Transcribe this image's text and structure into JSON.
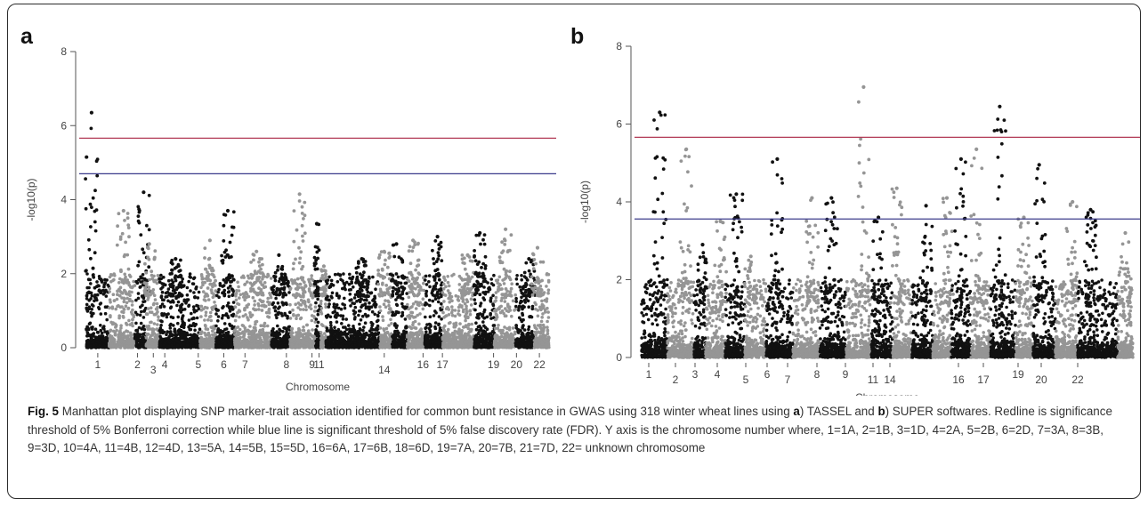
{
  "panels": {
    "a": {
      "letter": "a"
    },
    "b": {
      "letter": "b"
    }
  },
  "colors": {
    "odd_chromosome": "#111111",
    "even_chromosome": "#959595",
    "bonferroni_line": "#b23a55",
    "fdr_line": "#3b3b8c"
  },
  "chart_data": [
    {
      "type": "scatter",
      "panel": "a",
      "subtype": "manhattan",
      "xlabel": "Chromosome",
      "ylabel": "-log10(p)",
      "ylim": [
        0,
        8
      ],
      "yticks": [
        0,
        2,
        4,
        6,
        8
      ],
      "xtick_labels": [
        "1",
        "2",
        "3",
        "4",
        "5",
        "6",
        "7",
        "8",
        "9",
        "11",
        "14",
        "16",
        "17",
        "19",
        "20",
        "22"
      ],
      "chromosomes": [
        "1",
        "2",
        "3",
        "4",
        "5",
        "6",
        "7",
        "8",
        "9",
        "10",
        "11",
        "12",
        "13",
        "14",
        "15",
        "16",
        "17",
        "18",
        "19",
        "20",
        "21",
        "22"
      ],
      "thresholds": [
        {
          "type": "Bonferroni 5%",
          "value": 5.66
        },
        {
          "type": "FDR 5%",
          "value": 4.7
        }
      ],
      "chromosome_peaks": [
        6.35,
        3.7,
        4.2,
        2.8,
        2.4,
        2.9,
        3.7,
        2.6,
        2.5,
        4.15,
        3.35,
        2.2,
        2.4,
        2.6,
        2.8,
        2.9,
        3.0,
        2.5,
        3.1,
        3.2,
        2.4,
        2.7
      ]
    },
    {
      "type": "scatter",
      "panel": "b",
      "subtype": "manhattan",
      "xlabel": "Chromosome",
      "ylabel": "-log10(p)",
      "ylim": [
        0,
        8
      ],
      "yticks": [
        0,
        2,
        4,
        6,
        8
      ],
      "xtick_labels": [
        "1",
        "2",
        "3",
        "4",
        "5",
        "6",
        "7",
        "8",
        "9",
        "11",
        "14",
        "16",
        "17",
        "19",
        "20",
        "22"
      ],
      "chromosomes": [
        "1",
        "2",
        "3",
        "4",
        "5",
        "6",
        "7",
        "8",
        "9",
        "10",
        "11",
        "12",
        "13",
        "14",
        "15",
        "16",
        "17",
        "18",
        "19",
        "20",
        "21",
        "22"
      ],
      "thresholds": [
        {
          "type": "Bonferroni 5%",
          "value": 5.66
        },
        {
          "type": "FDR 5%",
          "value": 3.56
        }
      ],
      "chromosome_peaks": [
        6.3,
        5.35,
        2.9,
        3.5,
        4.2,
        2.6,
        5.1,
        4.1,
        4.1,
        6.95,
        3.6,
        4.35,
        3.9,
        4.1,
        5.1,
        5.35,
        6.45,
        3.6,
        4.95,
        4.0,
        3.8,
        3.2
      ]
    }
  ],
  "caption": {
    "fig_label": "Fig. 5",
    "text_1": " Manhattan plot displaying SNP marker-trait association identified for common bunt resistance in GWAS using 318 winter wheat lines using ",
    "a_label": "a",
    "text_2": ") TASSEL and ",
    "b_label": "b",
    "text_3": ") SUPER softwares. Redline is significance threshold of 5% Bonferroni correction while blue line is significant threshold of 5% false discovery rate (FDR). Y axis is the chromosome number where, 1=1A, 2=1B, 3=1D, 4=2A, 5=2B, 6=2D, 7=3A, 8=3B, 9=3D, 10=4A, 11=4B, 12=4D, 13=5A, 14=5B, 15=5D, 16=6A, 17=6B, 18=6D, 19=7A, 20=7B, 21=7D, 22= unknown chromosome"
  }
}
